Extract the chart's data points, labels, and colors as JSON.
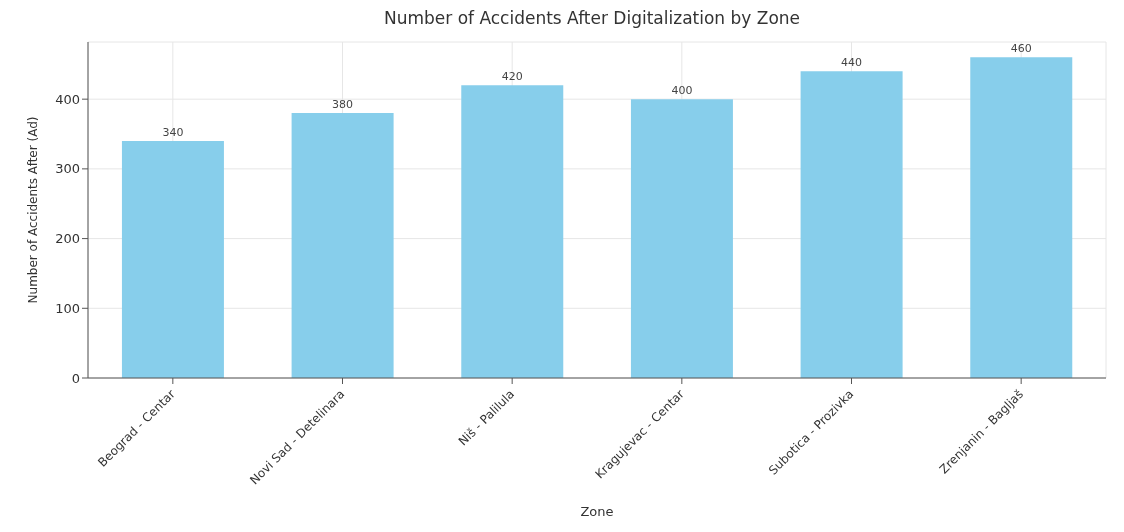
{
  "chart_data": {
    "type": "bar",
    "title": "Number of Accidents After Digitalization by Zone",
    "xlabel": "Zone",
    "ylabel": "Number of Accidents After (Ad)",
    "categories": [
      "Beograd - Centar",
      "Novi Sad - Detelinara",
      "Niš - Palilula",
      "Kragujevac - Centar",
      "Subotica - Prozivka",
      "Zrenjanin - Bagljaš"
    ],
    "values": [
      340,
      380,
      420,
      400,
      440,
      460
    ],
    "color": "#87ceeb",
    "ylim": [
      0,
      482
    ],
    "yticks": [
      0,
      100,
      200,
      300,
      400
    ],
    "grid": true,
    "data_labels": true
  }
}
